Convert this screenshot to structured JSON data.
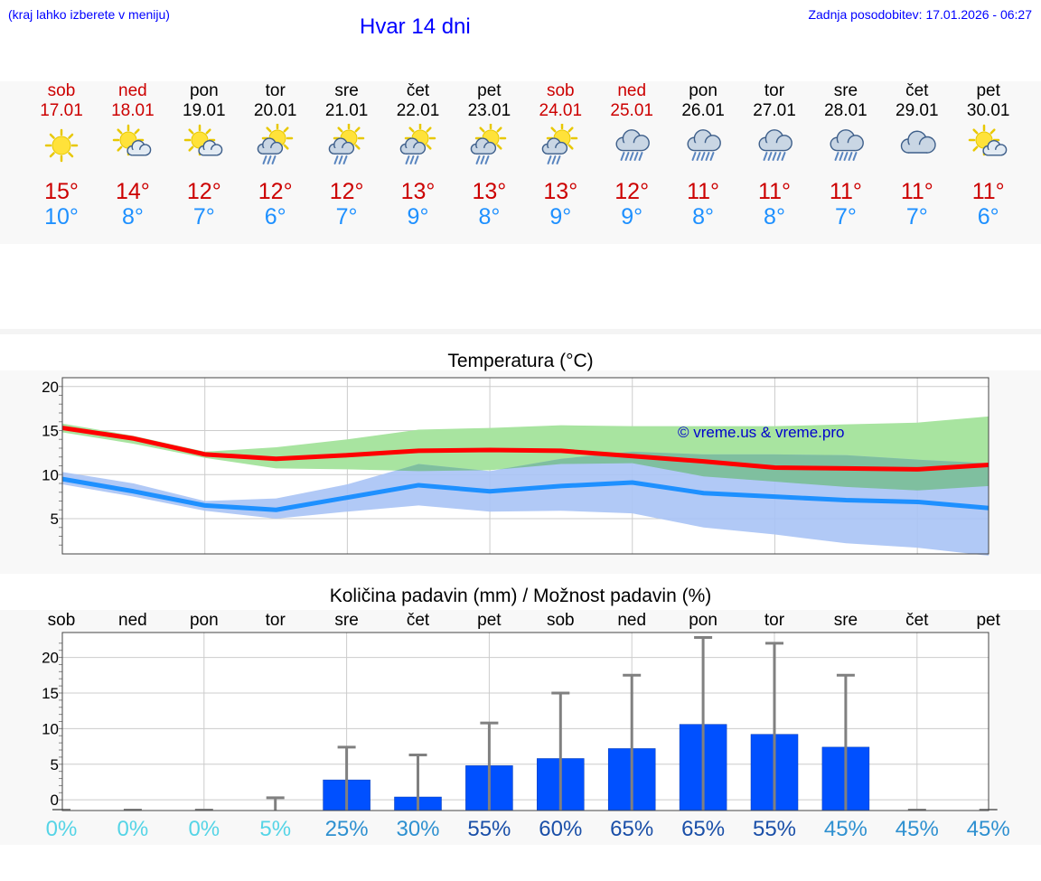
{
  "header": {
    "hint": "(kraj lahko izberete v meniju)",
    "title": "Hvar 14 dni",
    "update": "Zadnja posodobitev: 17.01.2026 - 06:27"
  },
  "days": [
    {
      "name": "sob",
      "date": "17.01",
      "weekend": true,
      "icon": "sun-icon",
      "max": "15°",
      "min": "10°"
    },
    {
      "name": "ned",
      "date": "18.01",
      "weekend": true,
      "icon": "sun-cloud-icon",
      "max": "14°",
      "min": "8°"
    },
    {
      "name": "pon",
      "date": "19.01",
      "weekend": false,
      "icon": "sun-cloud-icon",
      "max": "12°",
      "min": "7°"
    },
    {
      "name": "tor",
      "date": "20.01",
      "weekend": false,
      "icon": "sun-cloud-rain-icon",
      "max": "12°",
      "min": "6°"
    },
    {
      "name": "sre",
      "date": "21.01",
      "weekend": false,
      "icon": "sun-cloud-rain-icon",
      "max": "12°",
      "min": "7°"
    },
    {
      "name": "čet",
      "date": "22.01",
      "weekend": false,
      "icon": "sun-cloud-rain-icon",
      "max": "13°",
      "min": "9°"
    },
    {
      "name": "pet",
      "date": "23.01",
      "weekend": false,
      "icon": "sun-cloud-rain-icon",
      "max": "13°",
      "min": "8°"
    },
    {
      "name": "sob",
      "date": "24.01",
      "weekend": true,
      "icon": "sun-cloud-rain-icon",
      "max": "13°",
      "min": "9°"
    },
    {
      "name": "ned",
      "date": "25.01",
      "weekend": true,
      "icon": "cloud-rain-icon",
      "max": "12°",
      "min": "9°"
    },
    {
      "name": "pon",
      "date": "26.01",
      "weekend": false,
      "icon": "cloud-rain-icon",
      "max": "11°",
      "min": "8°"
    },
    {
      "name": "tor",
      "date": "27.01",
      "weekend": false,
      "icon": "cloud-rain-icon",
      "max": "11°",
      "min": "8°"
    },
    {
      "name": "sre",
      "date": "28.01",
      "weekend": false,
      "icon": "cloud-rain-icon",
      "max": "11°",
      "min": "7°"
    },
    {
      "name": "čet",
      "date": "29.01",
      "weekend": false,
      "icon": "cloud-icon",
      "max": "11°",
      "min": "7°"
    },
    {
      "name": "pet",
      "date": "30.01",
      "weekend": false,
      "icon": "sun-cloud-icon",
      "max": "11°",
      "min": "6°"
    }
  ],
  "colors": {
    "max": "#ff0000",
    "min": "#1e90ff",
    "maxBand": "#a8e4a0",
    "minBand": "#a9c3f5",
    "overlap": "#7fbf9f",
    "bar": "#0050ff",
    "whisker": "#808080",
    "weekend": "#cc0000"
  },
  "chart_data": [
    {
      "type": "line",
      "title": "Temperatura (°C)",
      "watermark": "© vreme.us & vreme.pro",
      "x": [
        "17.01",
        "18.01",
        "19.01",
        "20.01",
        "21.01",
        "22.01",
        "23.01",
        "24.01",
        "25.01",
        "26.01",
        "27.01",
        "28.01",
        "29.01",
        "30.01"
      ],
      "xmin": 0,
      "xmax": 13,
      "ylim": [
        1,
        21
      ],
      "yticks": [
        20,
        15,
        10,
        5
      ],
      "series": [
        {
          "name": "max",
          "x": [
            0,
            1,
            2,
            3,
            4,
            5,
            6,
            7,
            8,
            9,
            10,
            11,
            12,
            13
          ],
          "values": [
            15.3,
            14.1,
            12.3,
            11.8,
            12.2,
            12.7,
            12.8,
            12.7,
            12.1,
            11.5,
            10.8,
            10.7,
            10.6,
            11.1
          ],
          "band_upper": [
            15.8,
            14.4,
            12.6,
            13.1,
            14.0,
            15.1,
            15.3,
            15.6,
            15.5,
            15.5,
            15.5,
            15.7,
            15.9,
            16.6
          ],
          "band_lower": [
            14.8,
            13.5,
            11.9,
            10.7,
            10.6,
            10.4,
            10.5,
            11.2,
            11.3,
            9.8,
            9.2,
            8.6,
            8.2,
            8.7
          ]
        },
        {
          "name": "min",
          "x": [
            0,
            1,
            2,
            3,
            4,
            5,
            6,
            7,
            8,
            9,
            10,
            11,
            12,
            13
          ],
          "values": [
            9.5,
            8.1,
            6.5,
            6.0,
            7.4,
            8.8,
            8.1,
            8.7,
            9.1,
            7.9,
            7.5,
            7.1,
            6.9,
            6.2
          ],
          "band_upper": [
            10.3,
            9.0,
            7.0,
            7.3,
            8.9,
            11.2,
            10.4,
            11.8,
            12.6,
            12.3,
            12.3,
            12.2,
            11.7,
            11.3
          ],
          "band_lower": [
            8.9,
            7.5,
            5.9,
            5.0,
            5.8,
            6.5,
            5.8,
            5.9,
            5.6,
            4.0,
            3.2,
            2.2,
            1.7,
            0.8
          ]
        }
      ]
    },
    {
      "type": "bar",
      "title": "Količina padavin (mm) / Možnost padavin (%)",
      "categories": [
        "sob",
        "ned",
        "pon",
        "tor",
        "sre",
        "čet",
        "pet",
        "sob",
        "ned",
        "pon",
        "tor",
        "sre",
        "čet",
        "pet"
      ],
      "ylim": [
        -1.5,
        23.5
      ],
      "yticks": [
        20,
        15,
        10,
        5,
        0
      ],
      "series": [
        {
          "name": "precipitation",
          "values": [
            0,
            0,
            0,
            0,
            2.8,
            0.4,
            4.8,
            5.8,
            7.2,
            10.6,
            9.2,
            7.4,
            0,
            0
          ]
        },
        {
          "name": "precipitation_max",
          "values": [
            0,
            0,
            0,
            0.3,
            7.4,
            6.3,
            10.8,
            15.0,
            17.5,
            22.8,
            22.0,
            17.5,
            0,
            0
          ]
        }
      ],
      "probabilities": [
        "0%",
        "0%",
        "0%",
        "5%",
        "25%",
        "30%",
        "55%",
        "60%",
        "65%",
        "65%",
        "55%",
        "45%",
        "45%",
        "45%"
      ],
      "probability_colors": [
        "#55d4e6",
        "#55d4e6",
        "#55d4e6",
        "#55d4e6",
        "#2e90d0",
        "#2e90d0",
        "#1a4fa8",
        "#1a4fa8",
        "#1a4fa8",
        "#1a4fa8",
        "#1a4fa8",
        "#2e90d0",
        "#2e90d0",
        "#2e90d0"
      ]
    }
  ]
}
